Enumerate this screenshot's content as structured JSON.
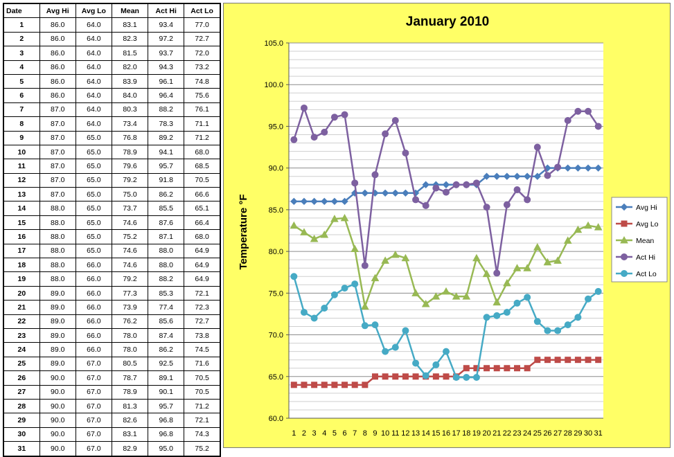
{
  "table": {
    "headers": [
      "Date",
      "Avg Hi",
      "Avg Lo",
      "Mean",
      "Act Hi",
      "Act Lo"
    ],
    "rows": [
      [
        "1",
        "86.0",
        "64.0",
        "83.1",
        "93.4",
        "77.0"
      ],
      [
        "2",
        "86.0",
        "64.0",
        "82.3",
        "97.2",
        "72.7"
      ],
      [
        "3",
        "86.0",
        "64.0",
        "81.5",
        "93.7",
        "72.0"
      ],
      [
        "4",
        "86.0",
        "64.0",
        "82.0",
        "94.3",
        "73.2"
      ],
      [
        "5",
        "86.0",
        "64.0",
        "83.9",
        "96.1",
        "74.8"
      ],
      [
        "6",
        "86.0",
        "64.0",
        "84.0",
        "96.4",
        "75.6"
      ],
      [
        "7",
        "87.0",
        "64.0",
        "80.3",
        "88.2",
        "76.1"
      ],
      [
        "8",
        "87.0",
        "64.0",
        "73.4",
        "78.3",
        "71.1"
      ],
      [
        "9",
        "87.0",
        "65.0",
        "76.8",
        "89.2",
        "71.2"
      ],
      [
        "10",
        "87.0",
        "65.0",
        "78.9",
        "94.1",
        "68.0"
      ],
      [
        "11",
        "87.0",
        "65.0",
        "79.6",
        "95.7",
        "68.5"
      ],
      [
        "12",
        "87.0",
        "65.0",
        "79.2",
        "91.8",
        "70.5"
      ],
      [
        "13",
        "87.0",
        "65.0",
        "75.0",
        "86.2",
        "66.6"
      ],
      [
        "14",
        "88.0",
        "65.0",
        "73.7",
        "85.5",
        "65.1"
      ],
      [
        "15",
        "88.0",
        "65.0",
        "74.6",
        "87.6",
        "66.4"
      ],
      [
        "16",
        "88.0",
        "65.0",
        "75.2",
        "87.1",
        "68.0"
      ],
      [
        "17",
        "88.0",
        "65.0",
        "74.6",
        "88.0",
        "64.9"
      ],
      [
        "18",
        "88.0",
        "66.0",
        "74.6",
        "88.0",
        "64.9"
      ],
      [
        "19",
        "88.0",
        "66.0",
        "79.2",
        "88.2",
        "64.9"
      ],
      [
        "20",
        "89.0",
        "66.0",
        "77.3",
        "85.3",
        "72.1"
      ],
      [
        "21",
        "89.0",
        "66.0",
        "73.9",
        "77.4",
        "72.3"
      ],
      [
        "22",
        "89.0",
        "66.0",
        "76.2",
        "85.6",
        "72.7"
      ],
      [
        "23",
        "89.0",
        "66.0",
        "78.0",
        "87.4",
        "73.8"
      ],
      [
        "24",
        "89.0",
        "66.0",
        "78.0",
        "86.2",
        "74.5"
      ],
      [
        "25",
        "89.0",
        "67.0",
        "80.5",
        "92.5",
        "71.6"
      ],
      [
        "26",
        "90.0",
        "67.0",
        "78.7",
        "89.1",
        "70.5"
      ],
      [
        "27",
        "90.0",
        "67.0",
        "78.9",
        "90.1",
        "70.5"
      ],
      [
        "28",
        "90.0",
        "67.0",
        "81.3",
        "95.7",
        "71.2"
      ],
      [
        "29",
        "90.0",
        "67.0",
        "82.6",
        "96.8",
        "72.1"
      ],
      [
        "30",
        "90.0",
        "67.0",
        "83.1",
        "96.8",
        "74.3"
      ],
      [
        "31",
        "90.0",
        "67.0",
        "82.9",
        "95.0",
        "75.2"
      ]
    ]
  },
  "chart_data": {
    "type": "line",
    "title": "January 2010",
    "xlabel": "",
    "ylabel": "Temperature °F",
    "ylim": [
      60,
      105
    ],
    "y_ticks": [
      "60.0",
      "65.0",
      "70.0",
      "75.0",
      "80.0",
      "85.0",
      "90.0",
      "95.0",
      "100.0",
      "105.0"
    ],
    "x": [
      "1",
      "2",
      "3",
      "4",
      "5",
      "6",
      "7",
      "8",
      "9",
      "10",
      "11",
      "12",
      "13",
      "14",
      "15",
      "16",
      "17",
      "18",
      "19",
      "20",
      "21",
      "22",
      "23",
      "24",
      "25",
      "26",
      "27",
      "28",
      "29",
      "30",
      "31"
    ],
    "grid": true,
    "legend_position": "right",
    "series": [
      {
        "name": "Avg Hi",
        "color": "#4a7ebb",
        "marker": "diamond",
        "values": [
          86,
          86,
          86,
          86,
          86,
          86,
          87,
          87,
          87,
          87,
          87,
          87,
          87,
          88,
          88,
          88,
          88,
          88,
          88,
          89,
          89,
          89,
          89,
          89,
          89,
          90,
          90,
          90,
          90,
          90,
          90
        ]
      },
      {
        "name": "Avg Lo",
        "color": "#be4b48",
        "marker": "square",
        "values": [
          64,
          64,
          64,
          64,
          64,
          64,
          64,
          64,
          65,
          65,
          65,
          65,
          65,
          65,
          65,
          65,
          65,
          66,
          66,
          66,
          66,
          66,
          66,
          66,
          67,
          67,
          67,
          67,
          67,
          67,
          67
        ]
      },
      {
        "name": "Mean",
        "color": "#98b954",
        "marker": "triangle",
        "values": [
          83.1,
          82.3,
          81.5,
          82.0,
          83.9,
          84.0,
          80.3,
          73.4,
          76.8,
          78.9,
          79.6,
          79.2,
          75.0,
          73.7,
          74.6,
          75.2,
          74.6,
          74.6,
          79.2,
          77.3,
          73.9,
          76.2,
          78.0,
          78.0,
          80.5,
          78.7,
          78.9,
          81.3,
          82.6,
          83.1,
          82.9
        ]
      },
      {
        "name": "Act Hi",
        "color": "#7d60a0",
        "marker": "circle",
        "values": [
          93.4,
          97.2,
          93.7,
          94.3,
          96.1,
          96.4,
          88.2,
          78.3,
          89.2,
          94.1,
          95.7,
          91.8,
          86.2,
          85.5,
          87.6,
          87.1,
          88.0,
          88.0,
          88.2,
          85.3,
          77.4,
          85.6,
          87.4,
          86.2,
          92.5,
          89.1,
          90.1,
          95.7,
          96.8,
          96.8,
          95.0
        ]
      },
      {
        "name": "Act Lo",
        "color": "#46aac5",
        "marker": "circle",
        "values": [
          77.0,
          72.7,
          72.0,
          73.2,
          74.8,
          75.6,
          76.1,
          71.1,
          71.2,
          68.0,
          68.5,
          70.5,
          66.6,
          65.1,
          66.4,
          68.0,
          64.9,
          64.9,
          64.9,
          72.1,
          72.3,
          72.7,
          73.8,
          74.5,
          71.6,
          70.5,
          70.5,
          71.2,
          72.1,
          74.3,
          75.2
        ]
      }
    ]
  }
}
